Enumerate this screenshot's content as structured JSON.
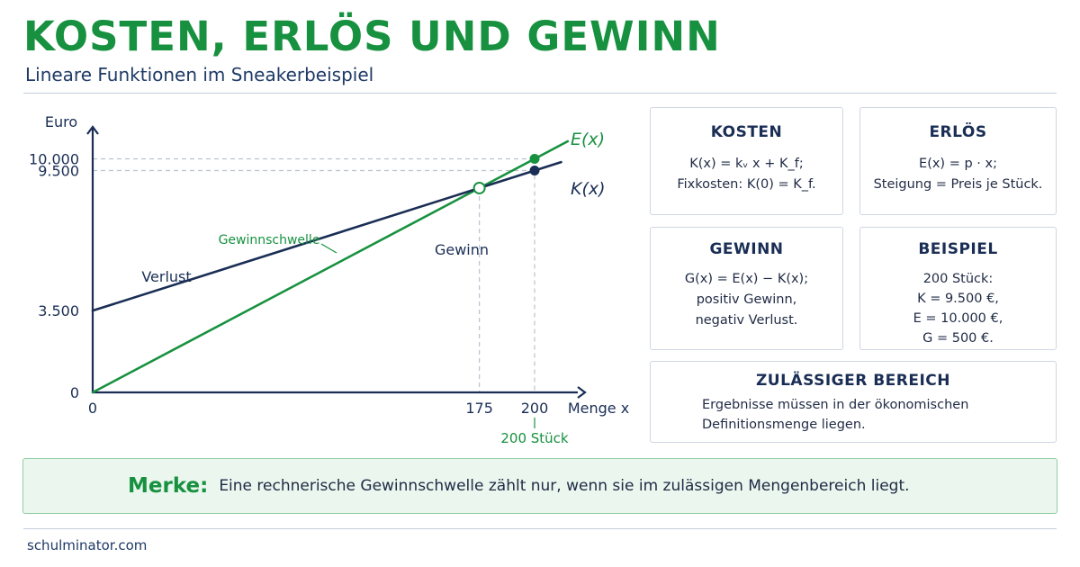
{
  "header": {
    "title": "KOSTEN, ERLÖS UND GEWINN",
    "subtitle": "Lineare Funktionen im Sneakerbeispiel"
  },
  "colors": {
    "green": "#17913f",
    "navy": "#1a2e55",
    "grid_dash": "#b9c2cf"
  },
  "chart_data": {
    "type": "line",
    "ylabel": "Euro",
    "xlabel": "Menge x",
    "x_ticks": [
      {
        "value": 0,
        "label": "0"
      },
      {
        "value": 175,
        "label": "175"
      },
      {
        "value": 200,
        "label": "200"
      }
    ],
    "y_ticks": [
      {
        "value": 0,
        "label": "0"
      },
      {
        "value": 3500,
        "label": "3.500"
      },
      {
        "value": 9500,
        "label": "9.500"
      },
      {
        "value": 10000,
        "label": "10.000"
      }
    ],
    "xlim": [
      0,
      220
    ],
    "ylim": [
      0,
      12000
    ],
    "series": [
      {
        "name": "E(x)",
        "color": "#17913f",
        "points": [
          [
            0,
            0
          ],
          [
            200,
            10000
          ]
        ]
      },
      {
        "name": "K(x)",
        "color": "#1a2e55",
        "points": [
          [
            0,
            3500
          ],
          [
            200,
            9500
          ]
        ]
      }
    ],
    "break_even": {
      "x": 175,
      "y": 8750,
      "label": "Gewinnschwelle"
    },
    "region_labels": {
      "loss": "Verlust",
      "profit": "Gewinn"
    },
    "x_annotation": "200 Stück"
  },
  "cards": {
    "kosten": {
      "title": "KOSTEN",
      "line1": "K(x) = kᵥ x + K_f;",
      "line2": "Fixkosten: K(0) = K_f."
    },
    "erloes": {
      "title": "ERLÖS",
      "line1": "E(x) = p · x;",
      "line2": "Steigung = Preis je Stück."
    },
    "gewinn": {
      "title": "GEWINN",
      "line1": "G(x) = E(x) − K(x);",
      "line2": "positiv Gewinn,",
      "line3": "negativ Verlust."
    },
    "beispiel": {
      "title": "BEISPIEL",
      "line1": "200 Stück:",
      "line2": "K = 9.500 €,",
      "line3": "E = 10.000 €,",
      "line4": "G = 500 €."
    },
    "bereich": {
      "title": "ZULÄSSIGER BEREICH",
      "line1": "Ergebnisse müssen in der ökonomischen",
      "line2": "Definitionsmenge liegen."
    }
  },
  "note": {
    "label": "Merke:",
    "text": "Eine rechnerische Gewinnschwelle zählt nur, wenn sie im zulässigen Mengenbereich liegt."
  },
  "footer": {
    "text": "schulminator.com"
  }
}
